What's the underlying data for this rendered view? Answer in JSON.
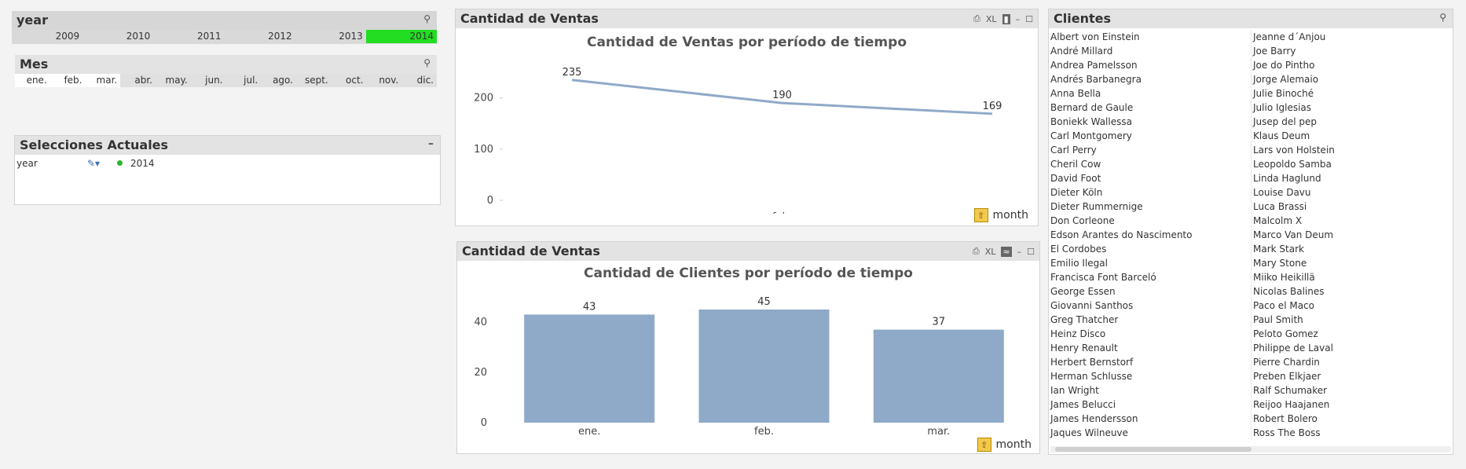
{
  "year_box": {
    "title": "year",
    "years": [
      "2009",
      "2010",
      "2011",
      "2012",
      "2013",
      "2014"
    ],
    "selected": "2014",
    "selected_color": "#22dd22"
  },
  "mes_box": {
    "title": "Mes",
    "months": [
      "ene.",
      "feb.",
      "mar.",
      "abr.",
      "may.",
      "jun.",
      "jul.",
      "ago.",
      "sept.",
      "oct.",
      "nov.",
      "dic."
    ],
    "possible": [
      "ene.",
      "feb.",
      "mar."
    ]
  },
  "selections_box": {
    "title": "Selecciones Actuales",
    "minimize": "–",
    "field": "year",
    "value": "2014"
  },
  "chart1": {
    "caption": "Cantidad de Ventas",
    "xl_label": "XL",
    "dimension_label": "month",
    "color": "#8fa9c8"
  },
  "chart2": {
    "caption": "Cantidad de Ventas",
    "xl_label": "XL",
    "dimension_label": "month",
    "color": "#8fa9c8"
  },
  "chart_data": [
    {
      "type": "line",
      "title": "Cantidad de Ventas por período de tiempo",
      "categories": [
        "ene.",
        "feb.",
        "mar."
      ],
      "values": [
        235,
        190,
        169
      ],
      "ylim": [
        0,
        250
      ],
      "yticks": [
        "0",
        "100",
        "200"
      ],
      "data_labels": [
        "235",
        "190",
        "169"
      ],
      "xlabel": "",
      "ylabel": ""
    },
    {
      "type": "bar",
      "title": "Cantidad de Clientes por período de tiempo",
      "categories": [
        "ene.",
        "feb.",
        "mar."
      ],
      "values": [
        43,
        45,
        37
      ],
      "ylim": [
        0,
        50
      ],
      "yticks": [
        "0",
        "20",
        "40"
      ],
      "data_labels": [
        "43",
        "45",
        "37"
      ],
      "xlabel": "",
      "ylabel": ""
    }
  ],
  "clientes_box": {
    "title": "Clientes",
    "col1": [
      "Albert von Einstein",
      "André Millard",
      "Andrea Pamelsson",
      "Andrés Barbanegra",
      "Anna Bella",
      "Bernard de Gaule",
      "Boniekk Wallessa",
      "Carl Montgomery",
      "Carl Perry",
      "Cheril Cow",
      "David Foot",
      "Dieter Köln",
      "Dieter Rummernige",
      "Don Corleone",
      "Edson Arantes do Nascimento",
      "El Cordobes",
      "Emilio Ilegal",
      "Francisca Font Barceló",
      "George Essen",
      "Giovanni Santhos",
      "Greg Thatcher",
      "Heinz Disco",
      "Henry Renault",
      "Herbert Bernstorf",
      "Herman Schlusse",
      "Ian Wright",
      "James Belucci",
      "James Hendersson",
      "Jaques Wilneuve"
    ],
    "col2": [
      "Jeanne d´Anjou",
      "Joe Barry",
      "Joe do Pintho",
      "Jorge Alemaio",
      "Julie Binoché",
      "Julio Iglesias",
      "Jusep del pep",
      "Klaus Deum",
      "Lars von Holstein",
      "Leopoldo Samba",
      "Linda Haglund",
      "Louise Davu",
      "Luca Brassi",
      "Malcolm X",
      "Marco Van Deum",
      "Mark Stark",
      "Mary Stone",
      "Miiko Heikillä",
      "Nicolas Balines",
      "Paco el Maco",
      "Paul Smith",
      "Peloto Gomez",
      "Philippe de Laval",
      "Pierre Chardin",
      "Preben Elkjaer",
      "Ralf Schumaker",
      "Reijoo Haajanen",
      "Robert Bolero",
      "Ross The Boss"
    ]
  }
}
